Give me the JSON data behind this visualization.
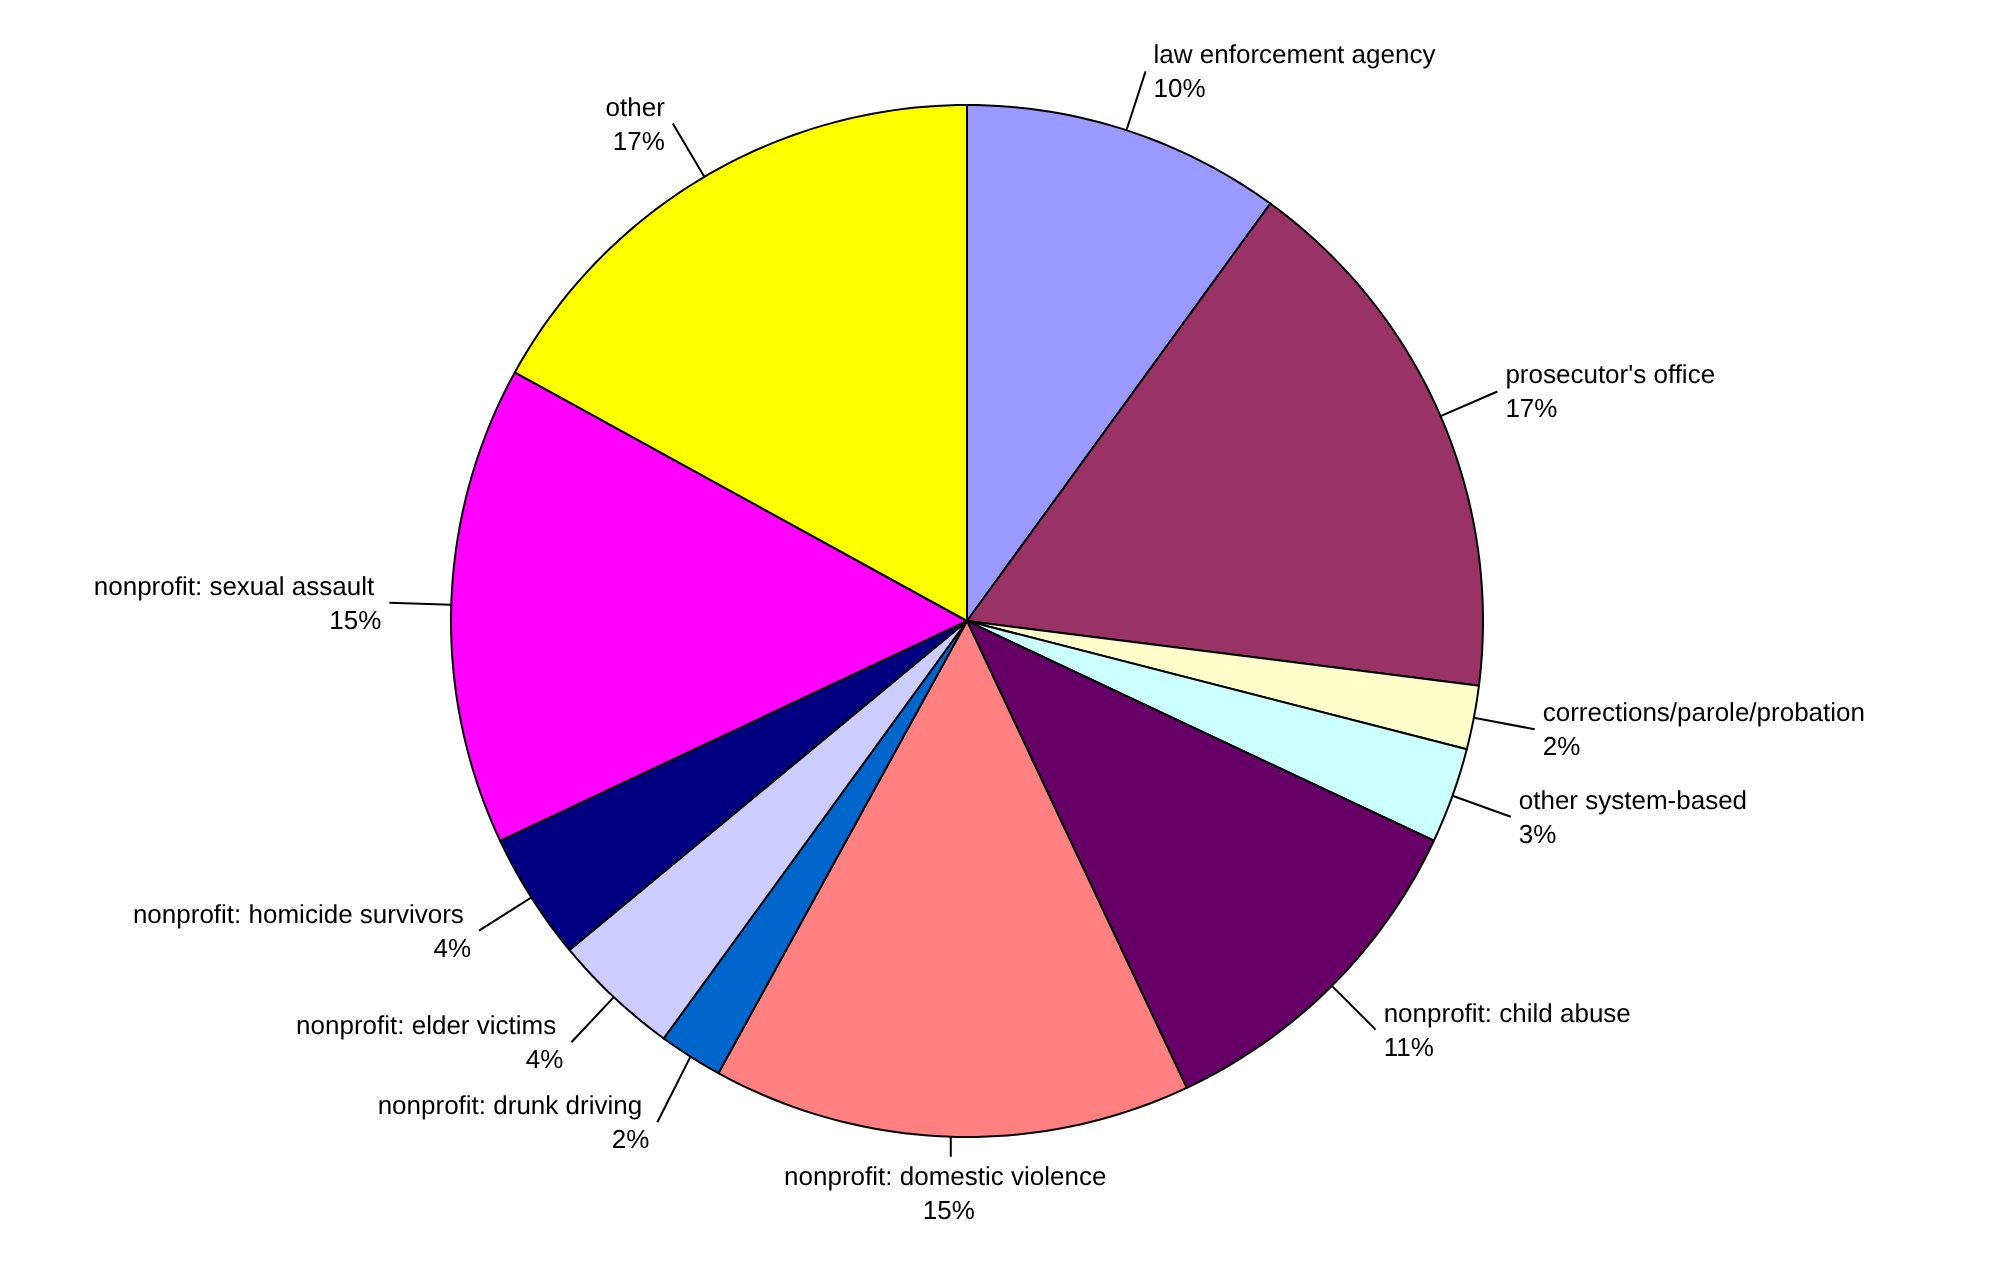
{
  "chart_data": {
    "type": "pie",
    "categories": [
      "law enforcement agency",
      "prosecutor's office",
      "corrections/parole/probation",
      "other system-based",
      "nonprofit: child abuse",
      "nonprofit:  domestic violence",
      "nonprofit:  drunk driving",
      "nonprofit:  elder victims",
      "nonprofit:  homicide survivors",
      "nonprofit:  sexual assault",
      "other"
    ],
    "values": [
      10,
      17,
      2,
      3,
      11,
      15,
      2,
      4,
      4,
      15,
      17
    ],
    "value_labels": [
      "10%",
      "17%",
      "2%",
      "3%",
      "11%",
      "15%",
      "2%",
      "4%",
      "4%",
      "15%",
      "17%"
    ],
    "colors": [
      "#9999ff",
      "#993366",
      "#ffffcc",
      "#ccffff",
      "#660066",
      "#ff8080",
      "#0066cc",
      "#ccccff",
      "#000080",
      "#ff00ff",
      "#ffff00"
    ]
  }
}
